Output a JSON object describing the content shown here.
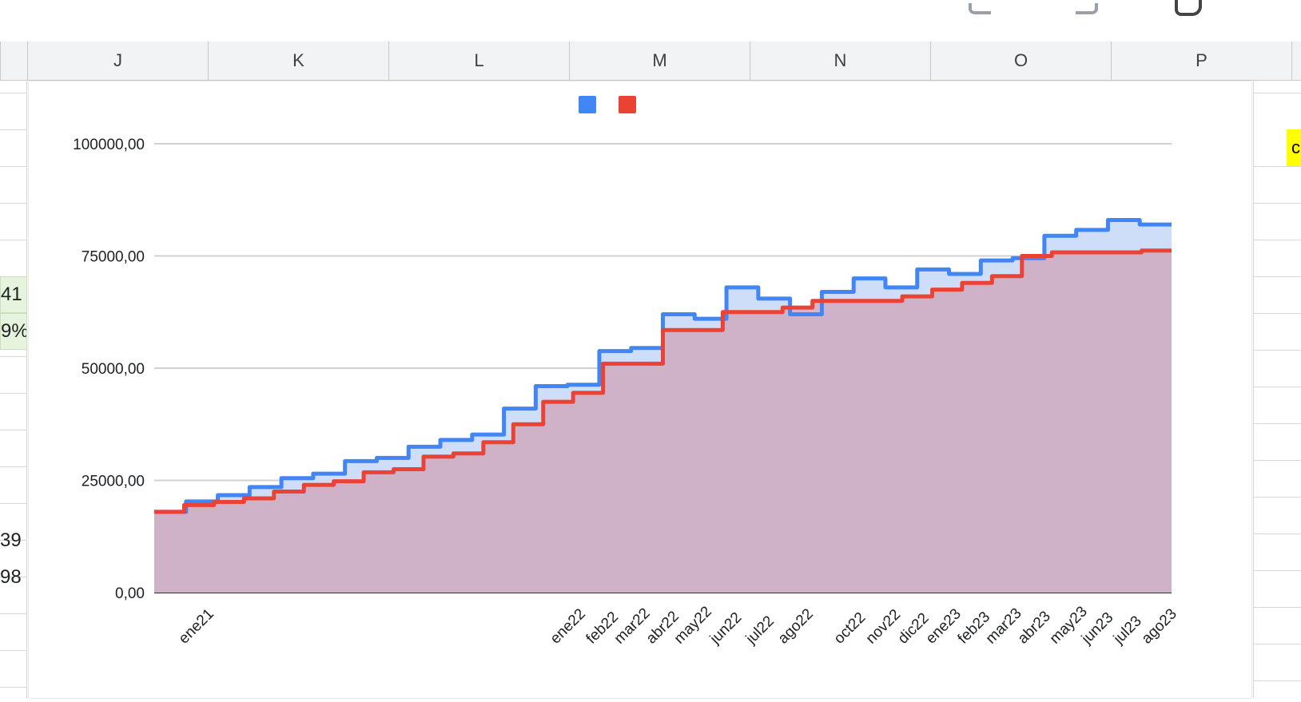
{
  "toolbar": {
    "icons": [
      "undo-icon",
      "redo-icon",
      "format-paint-icon"
    ]
  },
  "columns": [
    "J",
    "K",
    "L",
    "M",
    "N",
    "O",
    "P"
  ],
  "left_cells": [
    {
      "text": "41",
      "style": "green"
    },
    {
      "text": "9%",
      "style": "green"
    },
    {
      "text": "39",
      "style": "plain"
    },
    {
      "text": "98",
      "style": "plain"
    }
  ],
  "right_cell": {
    "text": "c"
  },
  "colors": {
    "series_blue": "#4285f4",
    "series_red": "#ea4335",
    "blue_fill": "#c9daf8",
    "overlap_fill": "#cfaac0"
  },
  "chart_data": {
    "type": "area",
    "stepped": true,
    "title": "",
    "xlabel": "",
    "ylabel": "",
    "ylim": [
      0,
      100000
    ],
    "yticks": [
      "0,00",
      "25000,00",
      "50000,00",
      "75000,00",
      "100000,00"
    ],
    "grid": true,
    "legend": "top-center",
    "x_labels": [
      "ene21",
      "ene22",
      "feb22",
      "mar22",
      "abr22",
      "may22",
      "jun22",
      "jul22",
      "ago22",
      "oct22",
      "nov22",
      "dic22",
      "ene23",
      "feb23",
      "mar23",
      "abr23",
      "may23",
      "jun23",
      "jul23",
      "ago23"
    ],
    "series": [
      {
        "name": "",
        "values": [
          18000,
          20300,
          21700,
          23500,
          25500,
          26500,
          29300,
          30000,
          32500,
          34000,
          35200,
          41000,
          46000,
          46300,
          53800,
          54500,
          62000,
          61000,
          68000,
          65500,
          62000,
          67000,
          70000,
          68000,
          72000,
          71000,
          74000,
          74500,
          79500,
          80800,
          83000,
          82000
        ]
      },
      {
        "name": "",
        "values": [
          18000,
          19500,
          20200,
          21000,
          22500,
          24000,
          24800,
          26800,
          27500,
          30300,
          31000,
          33500,
          37500,
          42500,
          44500,
          51000,
          51000,
          58500,
          58500,
          62500,
          62500,
          63500,
          65000,
          65000,
          65000,
          66000,
          67500,
          69000,
          70500,
          75000,
          75800,
          75800,
          75800,
          76200
        ]
      }
    ]
  }
}
